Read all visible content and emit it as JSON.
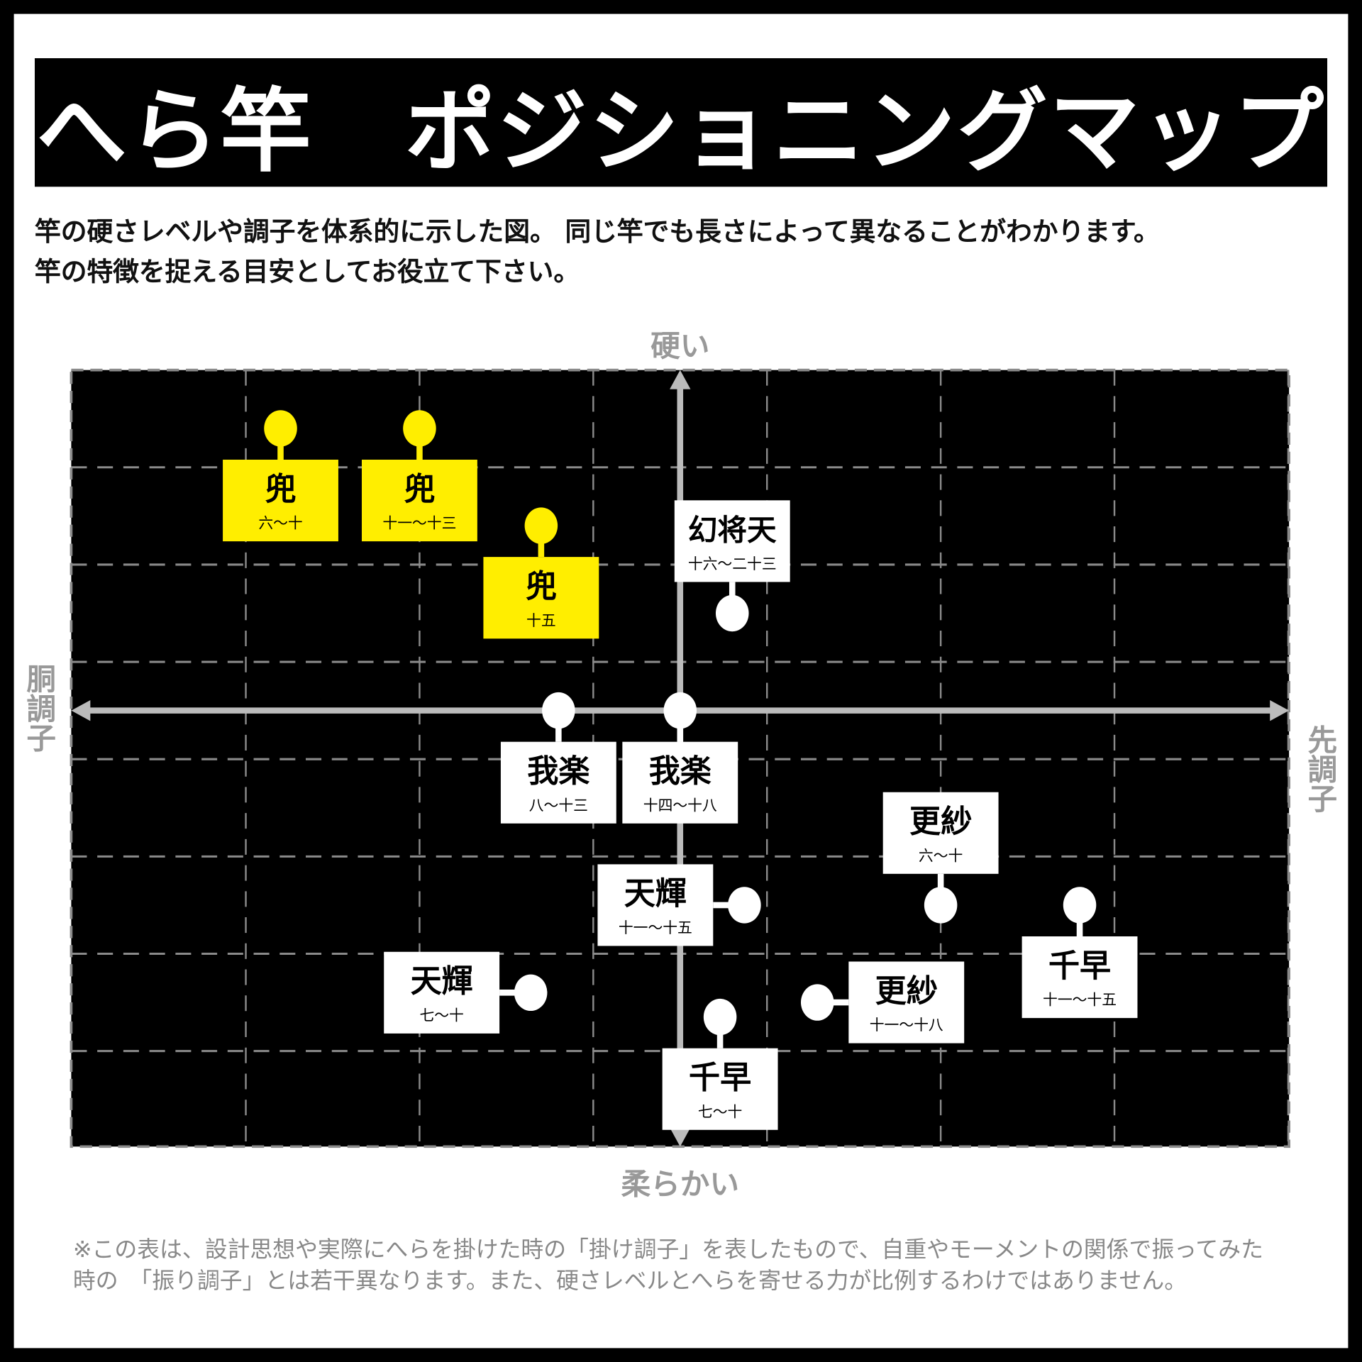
{
  "title": "へら竿　ポジショニングマップ",
  "intro": {
    "line1": "竿の硬さレベルや調子を体系的に示した図。 同じ竿でも長さによって異なることがわかります。",
    "line2": "竿の特徴を捉える目安としてお役立て下さい。"
  },
  "footnote": {
    "line1": "※この表は、設計思想や実際にへらを掛けた時の「掛け調子」を表したもので、自重やモーメントの関係で振ってみた",
    "line2": "時の　「振り調子」とは若干異なります。また、硬さレベルとへらを寄せる力が比例するわけではありません。"
  },
  "colors": {
    "background": "#000000",
    "grid": "#8a8a8a",
    "axis": "#bbbbbb",
    "highlight": "#ffee00",
    "card": "#ffffff"
  },
  "chart_data": {
    "type": "scatter",
    "title": "",
    "axes": {
      "top": "硬い",
      "bottom": "柔らかい",
      "left": "胴調子",
      "right": "先調子"
    },
    "xlim": [
      -3.5,
      3.5
    ],
    "ylim": [
      -4,
      4
    ],
    "grid": true,
    "points": [
      {
        "name": "兜",
        "range": "六～十",
        "x": -2.3,
        "y": 2.9,
        "highlight": true,
        "label_position": "below"
      },
      {
        "name": "兜",
        "range": "十一～十三",
        "x": -1.5,
        "y": 2.9,
        "highlight": true,
        "label_position": "below"
      },
      {
        "name": "兜",
        "range": "十五",
        "x": -0.8,
        "y": 1.9,
        "highlight": true,
        "label_position": "below"
      },
      {
        "name": "幻将天",
        "range": "十六～二十三",
        "x": 0.3,
        "y": 1.0,
        "highlight": false,
        "label_position": "above"
      },
      {
        "name": "我楽",
        "range": "八～十三",
        "x": -0.7,
        "y": 0.0,
        "highlight": false,
        "label_position": "below"
      },
      {
        "name": "我楽",
        "range": "十四～十八",
        "x": 0.0,
        "y": 0.0,
        "highlight": false,
        "label_position": "below"
      },
      {
        "name": "更紗",
        "range": "六～十",
        "x": 1.5,
        "y": -2.0,
        "highlight": false,
        "label_position": "above"
      },
      {
        "name": "天輝",
        "range": "十一～十五",
        "x": 0.37,
        "y": -2.0,
        "highlight": false,
        "label_position": "left"
      },
      {
        "name": "千早",
        "range": "十一～十五",
        "x": 2.3,
        "y": -2.0,
        "highlight": false,
        "label_position": "below"
      },
      {
        "name": "天輝",
        "range": "七～十",
        "x": -0.86,
        "y": -2.9,
        "highlight": false,
        "label_position": "left"
      },
      {
        "name": "更紗",
        "range": "十一～十八",
        "x": 0.79,
        "y": -3.0,
        "highlight": false,
        "label_position": "right"
      },
      {
        "name": "千早",
        "range": "七～十",
        "x": 0.23,
        "y": -3.15,
        "highlight": false,
        "label_position": "below"
      }
    ]
  }
}
